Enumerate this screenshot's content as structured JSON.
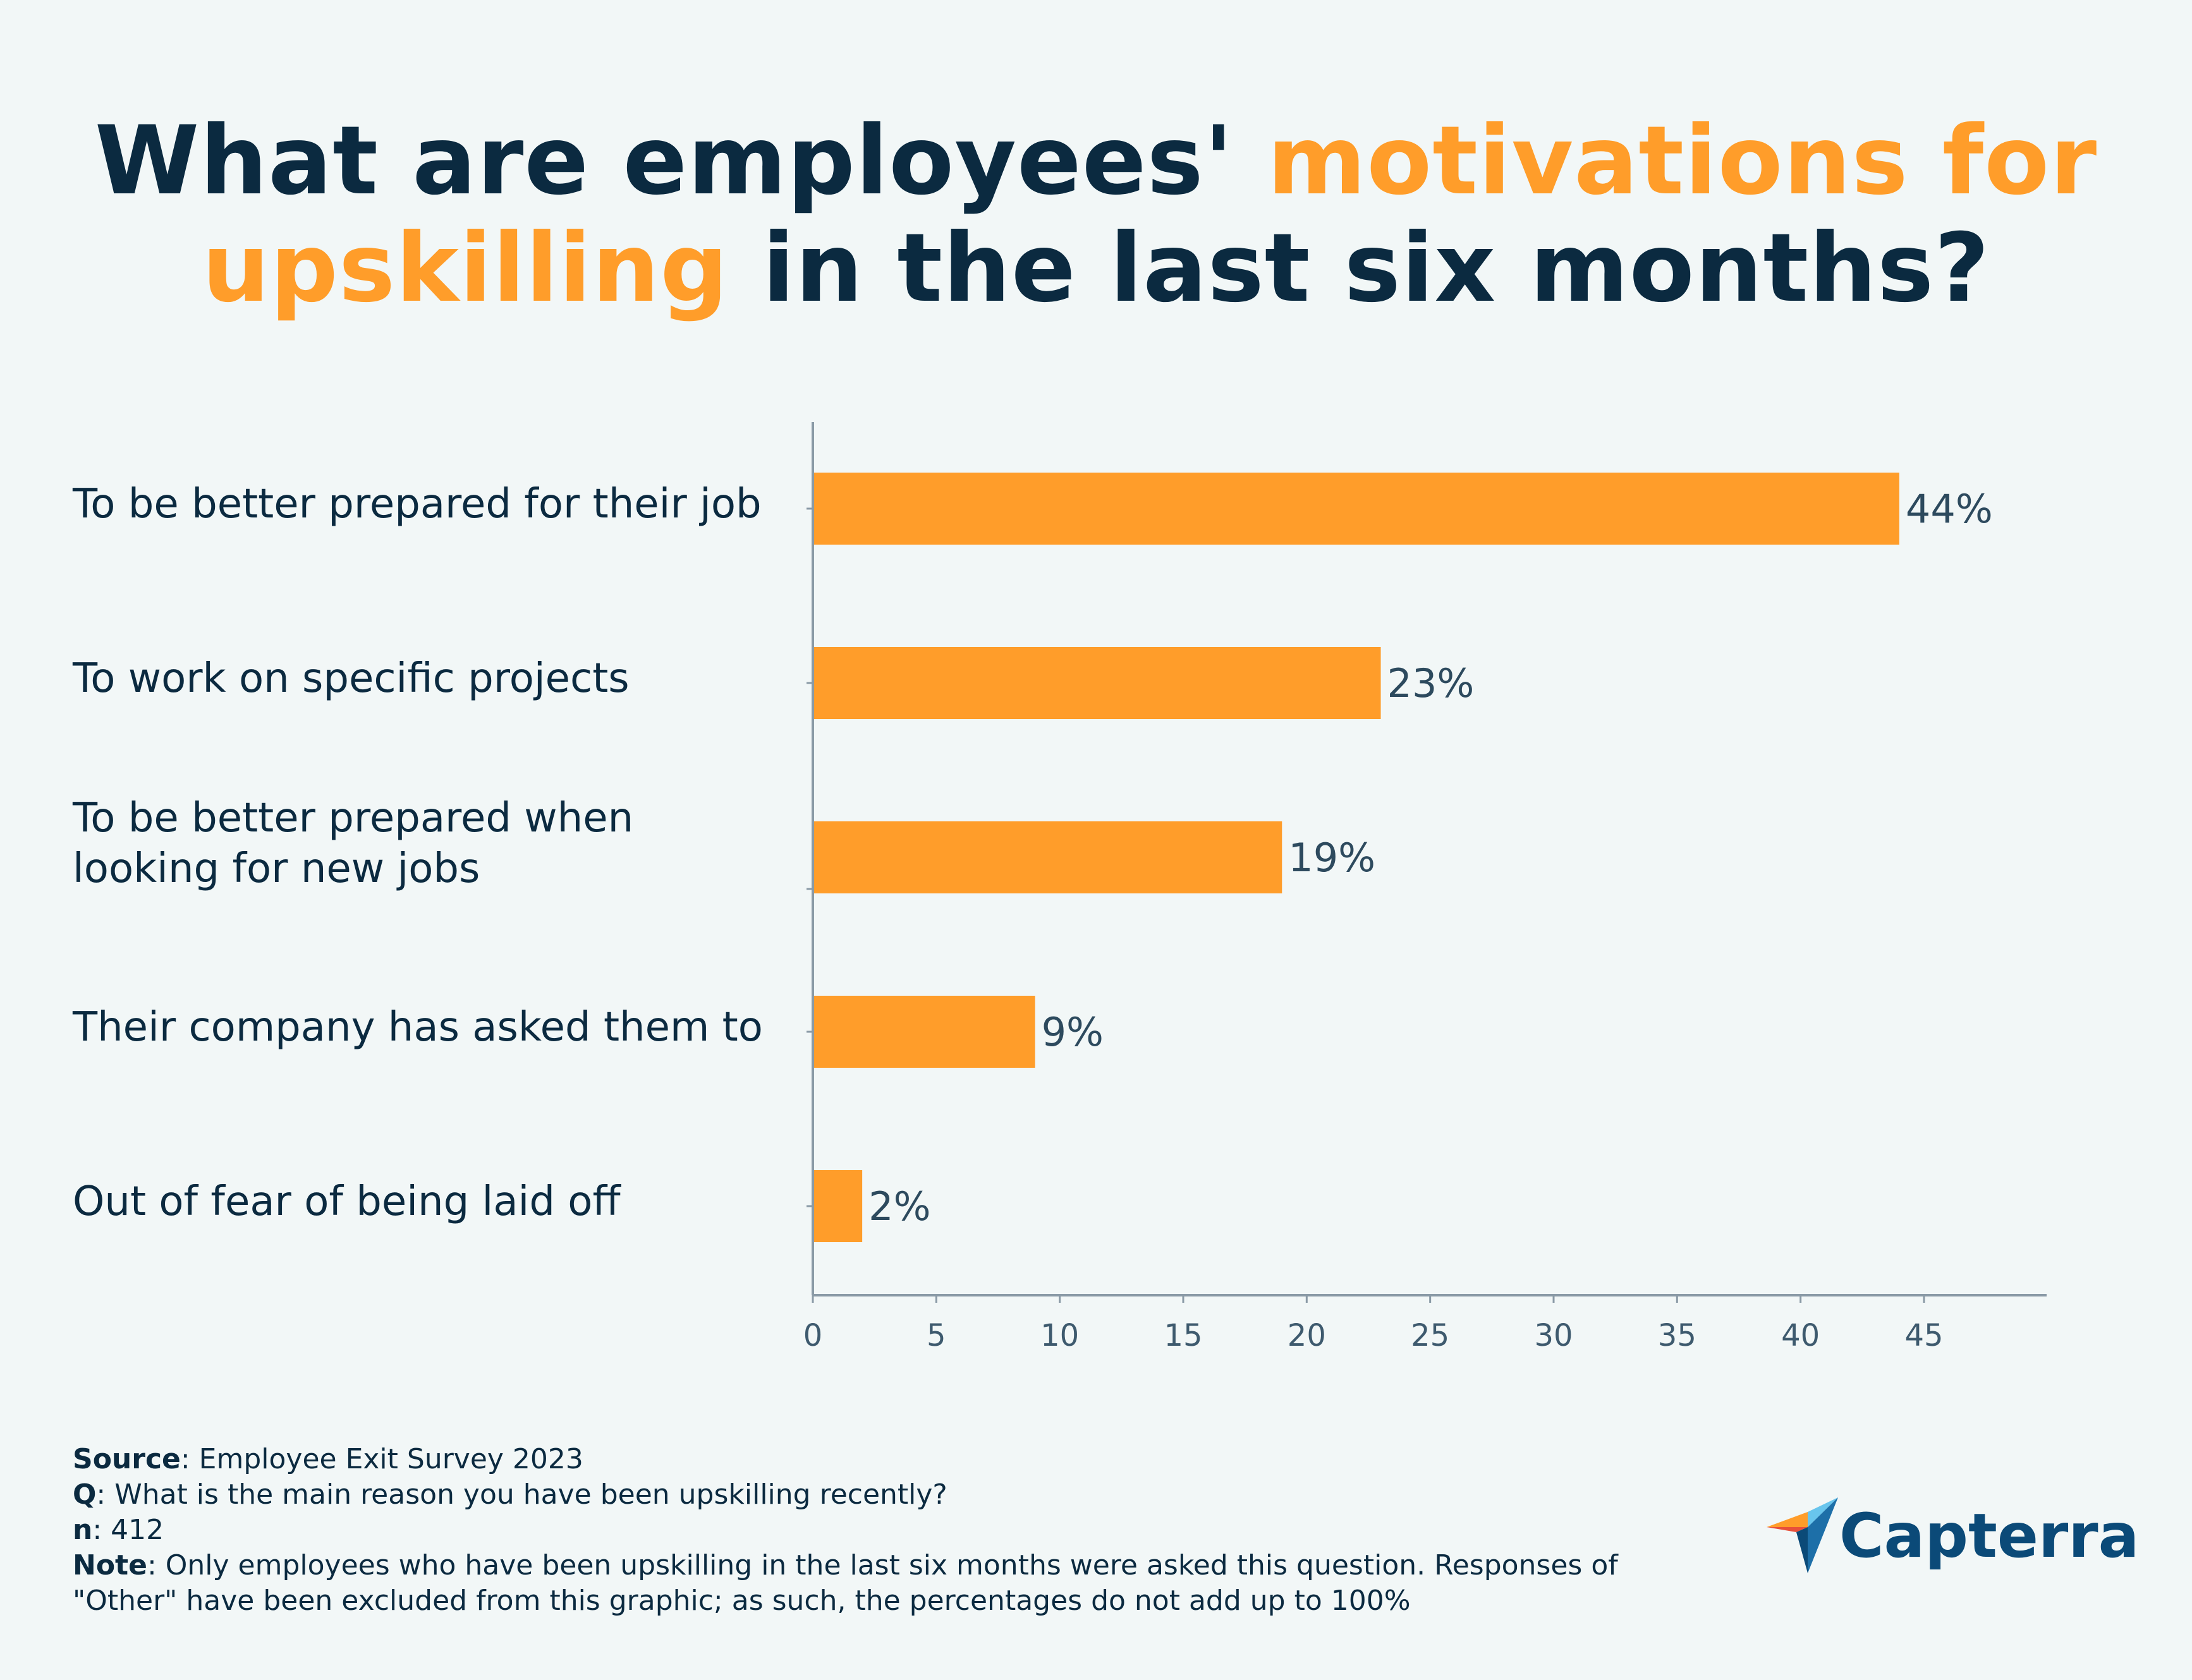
{
  "title": {
    "part1": "What are employees' ",
    "highlight1": "motivations for",
    "highlight2": "upskilling",
    "part2": " in the last six months?"
  },
  "colors": {
    "bar": "#ff9d2a",
    "title_dark": "#0b2a40",
    "highlight": "#ff9d2a",
    "background": "#f2f7f7"
  },
  "chart_data": {
    "type": "bar",
    "orientation": "horizontal",
    "categories": [
      [
        "To be better prepared for their job"
      ],
      [
        "To work on specific projects"
      ],
      [
        "To be better prepared when",
        "looking for new jobs"
      ],
      [
        "Their company has asked them to"
      ],
      [
        "Out of fear of being laid off"
      ]
    ],
    "values": [
      44,
      23,
      19,
      9,
      2
    ],
    "value_labels": [
      "44%",
      "23%",
      "19%",
      "9%",
      "2%"
    ],
    "xlim": [
      0,
      50
    ],
    "xticks": [
      0,
      5,
      10,
      15,
      20,
      25,
      30,
      35,
      40,
      45
    ],
    "grid": false,
    "legend": "none"
  },
  "footnotes": {
    "source_label": "Source",
    "source_text": ": Employee Exit Survey 2023",
    "q_label": "Q",
    "q_text": ": What is the main reason you have been upskilling recently?",
    "n_label": "n",
    "n_text": ": 412",
    "note_label": "Note",
    "note_line1": ": Only employees who have been upskilling in the last six months were asked this question. Responses of",
    "note_line2": "\"Other\" have been excluded from this graphic; as such, the percentages do not add up to 100%"
  },
  "logo": {
    "text": "Capterra",
    "icon": "capterra-arrow-logo"
  }
}
